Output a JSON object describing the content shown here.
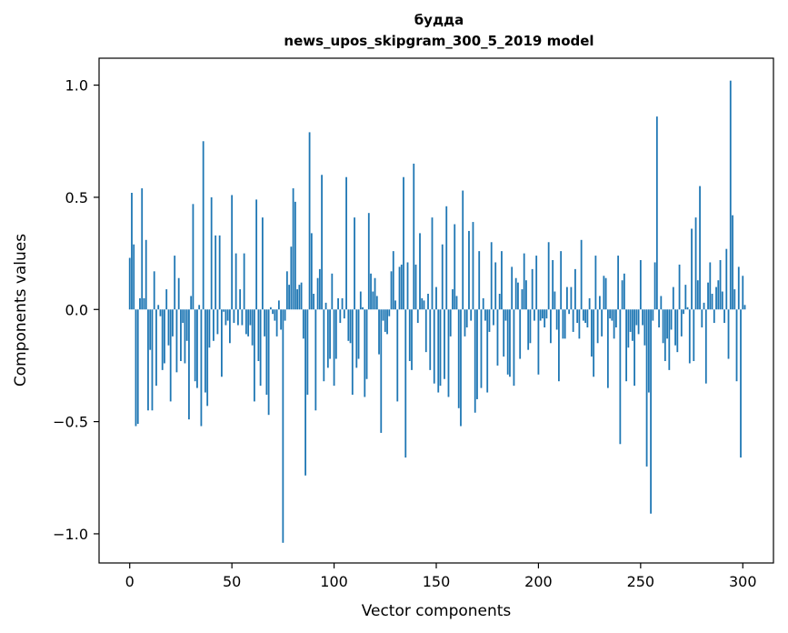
{
  "chart_data": {
    "type": "bar",
    "title": "будда",
    "subtitle": "news_upos_skipgram_300_5_2019 model",
    "xlabel": "Vector components",
    "ylabel": "Components values",
    "xlim": [
      -15,
      315
    ],
    "ylim": [
      -1.13,
      1.12
    ],
    "xticks": [
      0,
      50,
      100,
      150,
      200,
      250,
      300
    ],
    "xtick_labels": [
      "0",
      "50",
      "100",
      "150",
      "200",
      "250",
      "300"
    ],
    "yticks": [
      -1.0,
      -0.5,
      0.0,
      0.5,
      1.0
    ],
    "ytick_labels": [
      "−1.0",
      "−0.5",
      "0.0",
      "0.5",
      "1.0"
    ],
    "grid": false,
    "legend": "none",
    "bar_color": "#1f77b4",
    "series": [
      {
        "values": [
          0.23,
          0.52,
          0.29,
          -0.52,
          -0.51,
          0.05,
          0.54,
          0.05,
          0.31,
          -0.45,
          -0.18,
          -0.45,
          0.17,
          -0.34,
          0.02,
          -0.03,
          -0.27,
          -0.24,
          0.09,
          -0.16,
          -0.41,
          -0.12,
          0.24,
          -0.28,
          0.14,
          -0.23,
          -0.06,
          -0.24,
          -0.14,
          -0.49,
          0.06,
          0.47,
          -0.32,
          -0.35,
          0.02,
          -0.52,
          0.75,
          -0.37,
          -0.43,
          -0.17,
          0.5,
          -0.14,
          0.33,
          -0.11,
          0.33,
          -0.3,
          -0.01,
          -0.07,
          -0.05,
          -0.15,
          0.51,
          -0.06,
          0.25,
          -0.07,
          0.09,
          -0.07,
          0.25,
          -0.11,
          -0.12,
          -0.07,
          -0.16,
          -0.41,
          0.49,
          -0.23,
          -0.34,
          0.41,
          -0.12,
          -0.38,
          -0.47,
          0.01,
          -0.02,
          -0.05,
          -0.12,
          0.04,
          -0.09,
          -1.04,
          -0.05,
          0.17,
          0.11,
          0.28,
          0.54,
          0.48,
          0.09,
          0.11,
          0.12,
          -0.13,
          -0.74,
          -0.38,
          0.79,
          0.34,
          0.07,
          -0.45,
          0.14,
          0.18,
          0.6,
          -0.32,
          0.03,
          -0.26,
          -0.22,
          0.16,
          -0.34,
          -0.22,
          0.05,
          -0.06,
          0.05,
          -0.04,
          0.59,
          -0.14,
          -0.15,
          -0.38,
          0.41,
          -0.26,
          -0.22,
          0.08,
          0.01,
          -0.39,
          -0.31,
          0.43,
          0.16,
          0.08,
          0.14,
          0.06,
          -0.2,
          -0.55,
          -0.05,
          -0.1,
          -0.11,
          -0.03,
          0.17,
          0.26,
          0.04,
          -0.41,
          0.19,
          0.2,
          0.59,
          -0.66,
          0.21,
          -0.23,
          -0.27,
          0.65,
          0.2,
          -0.06,
          0.34,
          0.05,
          0.04,
          -0.19,
          0.07,
          -0.27,
          0.41,
          -0.33,
          0.1,
          -0.37,
          -0.34,
          0.29,
          -0.31,
          0.46,
          -0.39,
          -0.12,
          0.09,
          0.38,
          0.06,
          -0.44,
          -0.52,
          0.53,
          -0.12,
          -0.08,
          0.35,
          -0.05,
          0.39,
          -0.46,
          -0.4,
          0.26,
          -0.35,
          0.05,
          -0.05,
          -0.37,
          -0.1,
          0.3,
          -0.07,
          0.21,
          -0.25,
          0.07,
          0.26,
          -0.21,
          -0.05,
          -0.29,
          -0.3,
          0.19,
          -0.34,
          0.14,
          0.12,
          -0.22,
          0.09,
          0.25,
          0.13,
          -0.18,
          -0.15,
          0.18,
          -0.05,
          0.24,
          -0.29,
          -0.05,
          -0.04,
          -0.08,
          -0.04,
          0.3,
          -0.15,
          0.22,
          0.08,
          -0.09,
          -0.32,
          0.26,
          -0.13,
          -0.13,
          0.1,
          -0.02,
          0.1,
          -0.1,
          0.18,
          -0.06,
          -0.13,
          0.31,
          -0.05,
          -0.06,
          -0.08,
          0.05,
          -0.21,
          -0.3,
          0.24,
          -0.15,
          0.06,
          -0.12,
          0.15,
          0.14,
          -0.35,
          -0.04,
          -0.05,
          -0.13,
          -0.08,
          0.24,
          -0.6,
          0.13,
          0.16,
          -0.32,
          -0.17,
          -0.1,
          -0.14,
          -0.34,
          -0.07,
          -0.11,
          0.22,
          -0.07,
          -0.16,
          -0.7,
          -0.37,
          -0.91,
          -0.05,
          0.21,
          0.86,
          -0.08,
          0.06,
          -0.15,
          -0.23,
          -0.13,
          -0.27,
          -0.09,
          0.1,
          -0.16,
          -0.19,
          0.2,
          -0.12,
          -0.02,
          0.11,
          0.01,
          -0.24,
          0.36,
          -0.23,
          0.41,
          0.13,
          0.55,
          -0.08,
          0.03,
          -0.33,
          0.12,
          0.21,
          0.07,
          -0.06,
          0.1,
          0.13,
          0.22,
          0.08,
          -0.06,
          0.27,
          -0.22,
          1.02,
          0.42,
          0.09,
          -0.32,
          0.19,
          -0.66,
          0.15,
          0.02
        ]
      }
    ]
  }
}
